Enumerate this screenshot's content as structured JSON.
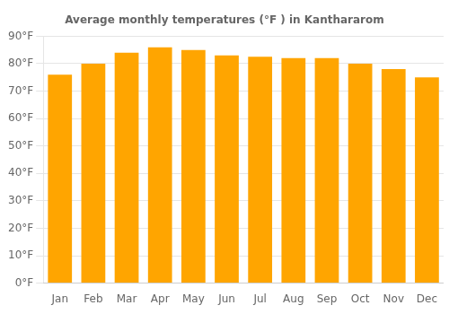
{
  "chart_data": {
    "type": "bar",
    "title": "Average monthly temperatures (°F ) in Kanthararom",
    "categories": [
      "Jan",
      "Feb",
      "Mar",
      "Apr",
      "May",
      "Jun",
      "Jul",
      "Aug",
      "Sep",
      "Oct",
      "Nov",
      "Dec"
    ],
    "values": [
      76,
      80,
      84,
      86,
      85,
      83,
      82.5,
      82,
      82,
      80,
      78,
      75
    ],
    "color": "#FFA500",
    "ylim": [
      0,
      90
    ],
    "yticks": [
      {
        "value": 0,
        "label": "0°F"
      },
      {
        "value": 10,
        "label": "10°F"
      },
      {
        "value": 20,
        "label": "20°F"
      },
      {
        "value": 30,
        "label": "30°F"
      },
      {
        "value": 40,
        "label": "40°F"
      },
      {
        "value": 50,
        "label": "50°F"
      },
      {
        "value": 60,
        "label": "60°F"
      },
      {
        "value": 70,
        "label": "70°F"
      },
      {
        "value": 80,
        "label": "80°F"
      },
      {
        "value": 90,
        "label": "90°F"
      }
    ],
    "grid": true
  }
}
